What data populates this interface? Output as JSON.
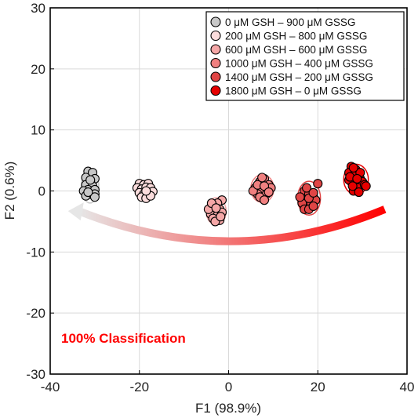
{
  "chart_data": {
    "type": "scatter",
    "xlabel": "F1 (98.9%)",
    "ylabel": "F2 (0.6%)",
    "xlim": [
      -40,
      40
    ],
    "ylim": [
      -30,
      30
    ],
    "xticks": [
      -40,
      -20,
      0,
      20,
      40
    ],
    "yticks": [
      -30,
      -20,
      -10,
      0,
      10,
      20,
      30
    ],
    "grid": true,
    "legend_position": "top-right",
    "annotation": "100%  Classification",
    "arrow": {
      "from": [
        35,
        -3
      ],
      "to": [
        -36,
        -3.3
      ],
      "gradient": [
        "#ff0000",
        "#e6e6e6"
      ]
    },
    "series": [
      {
        "name": "0 μM GSH – 900 μM GSSG",
        "color": "#c8c8c8",
        "points": [
          [
            -31.5,
            3.2
          ],
          [
            -30.5,
            3.0
          ],
          [
            -32.0,
            2.2
          ],
          [
            -30.0,
            2.0
          ],
          [
            -31.0,
            1.5
          ],
          [
            -32.0,
            1.0
          ],
          [
            -30.5,
            0.8
          ],
          [
            -31.5,
            0.2
          ],
          [
            -32.5,
            0.0
          ],
          [
            -30.0,
            0.2
          ],
          [
            -31.0,
            -0.5
          ],
          [
            -32.0,
            -0.8
          ],
          [
            -30.0,
            -0.5
          ],
          [
            -31.0,
            1.8
          ],
          [
            -30.0,
            -1.0
          ],
          [
            -31.5,
            -0.2
          ]
        ]
      },
      {
        "name": "200 μM GSH – 800 μM GSSG",
        "color": "#fbdcdc",
        "points": [
          [
            -20.0,
            1.2
          ],
          [
            -19.0,
            1.0
          ],
          [
            -18.0,
            1.2
          ],
          [
            -20.5,
            0.5
          ],
          [
            -19.5,
            0.3
          ],
          [
            -18.5,
            0.6
          ],
          [
            -17.5,
            0.5
          ],
          [
            -20.0,
            -0.3
          ],
          [
            -19.0,
            -0.5
          ],
          [
            -18.0,
            -0.2
          ],
          [
            -17.0,
            -0.1
          ],
          [
            -19.5,
            -1.0
          ],
          [
            -18.5,
            -1.2
          ],
          [
            -17.5,
            -0.8
          ],
          [
            -18.5,
            0.0
          ]
        ]
      },
      {
        "name": "600 μM GSH – 600 μM GSSG",
        "color": "#f5a7a7",
        "points": [
          [
            -1.5,
            -1.5
          ],
          [
            -2.5,
            -2.0
          ],
          [
            -3.5,
            -2.5
          ],
          [
            -2.0,
            -3.0
          ],
          [
            -3.0,
            -3.5
          ],
          [
            -4.0,
            -3.8
          ],
          [
            -2.5,
            -4.0
          ],
          [
            -3.5,
            -4.5
          ],
          [
            -1.5,
            -3.5
          ],
          [
            -4.5,
            -3.0
          ],
          [
            -2.0,
            -4.8
          ],
          [
            -3.0,
            -5.0
          ],
          [
            -3.8,
            -2.0
          ],
          [
            -2.8,
            -2.8
          ],
          [
            -1.8,
            -4.2
          ]
        ]
      },
      {
        "name": "1000 μM GSH – 400 μM GSSG",
        "color": "#f08080",
        "points": [
          [
            6.0,
            0.5
          ],
          [
            7.0,
            1.5
          ],
          [
            8.0,
            2.0
          ],
          [
            9.0,
            1.0
          ],
          [
            7.5,
            0.0
          ],
          [
            6.5,
            -0.5
          ],
          [
            8.5,
            -0.5
          ],
          [
            9.5,
            0.5
          ],
          [
            7.0,
            -1.0
          ],
          [
            8.0,
            -1.5
          ],
          [
            5.5,
            0.0
          ],
          [
            6.5,
            1.0
          ],
          [
            8.0,
            0.8
          ],
          [
            7.5,
            2.2
          ],
          [
            9.0,
            -0.2
          ]
        ]
      },
      {
        "name": "1400 μM GSH – 200 μM GSSG",
        "color": "#e04545",
        "points": [
          [
            17.0,
            0.0
          ],
          [
            18.0,
            -0.5
          ],
          [
            19.0,
            -1.0
          ],
          [
            17.5,
            -1.5
          ],
          [
            18.5,
            -2.0
          ],
          [
            19.5,
            -1.5
          ],
          [
            16.5,
            -2.0
          ],
          [
            17.0,
            -3.0
          ],
          [
            18.0,
            -3.0
          ],
          [
            19.0,
            -2.5
          ],
          [
            20.0,
            1.2
          ],
          [
            17.5,
            0.5
          ],
          [
            16.0,
            -1.0
          ],
          [
            18.0,
            -1.2
          ],
          [
            19.0,
            -0.3
          ]
        ]
      },
      {
        "name": "1800 μM GSH – 0 μM GSSG",
        "color": "#e60000",
        "points": [
          [
            27.5,
            4.0
          ],
          [
            28.5,
            3.5
          ],
          [
            29.0,
            3.0
          ],
          [
            27.0,
            3.0
          ],
          [
            28.0,
            2.5
          ],
          [
            29.5,
            2.0
          ],
          [
            27.5,
            1.5
          ],
          [
            28.5,
            1.0
          ],
          [
            30.0,
            1.5
          ],
          [
            29.0,
            0.5
          ],
          [
            28.0,
            0.0
          ],
          [
            27.0,
            1.8
          ],
          [
            30.5,
            1.0
          ],
          [
            29.5,
            3.0
          ],
          [
            28.0,
            3.8
          ],
          [
            27.2,
            2.3
          ],
          [
            28.8,
            2.0
          ],
          [
            30.8,
            0.8
          ],
          [
            29.2,
            -0.2
          ],
          [
            27.8,
            0.8
          ]
        ]
      }
    ]
  }
}
